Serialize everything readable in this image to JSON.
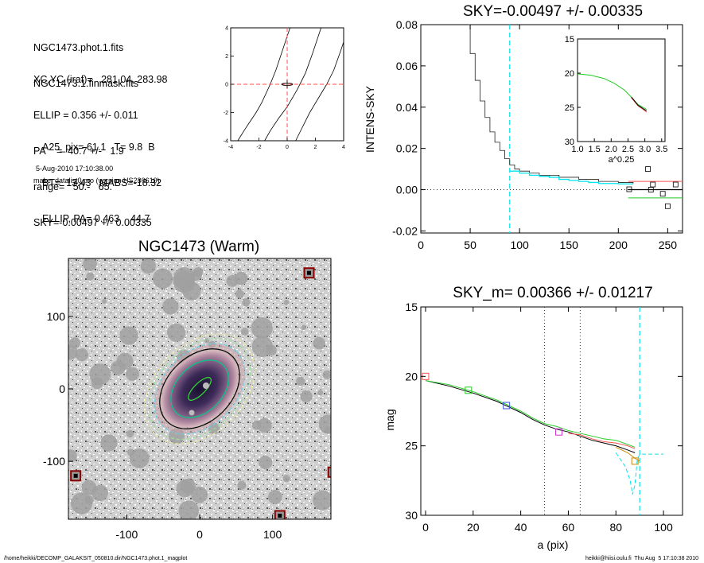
{
  "info": {
    "file_lines": [
      "NGC1473.phot.1.fits",
      "NGC1473.1.finmask.fits"
    ],
    "param_lines": [
      "XC,YC (iraf)=   281.04, 283.98",
      "ELLIP = 0.356 +/- 0.011",
      "PA    =  40.7 +/-   1.9",
      "range=   50.-   65.",
      "SKY=-0.00497 +/- 0.00335"
    ],
    "result_lines": [
      "A25_pix= 61.1   T= 9.8  B",
      "BT=  13.43   MABS=-18.32",
      "ELLIP, PA= 0.463    44.7"
    ],
    "date": "5-Aug-2010 17:10:38.00",
    "program": "make_datalist0.pro (version HS230610)"
  },
  "footer": {
    "left": "/home/heikki/DECOMP_GALAKSIT_050810.dir/NGC1473.phot.1_magplot",
    "right": "heikki@hiisi.oulu.fi  Thu Aug  5 17:10:38 2010"
  },
  "colors": {
    "sky_dash": "#00e5ee",
    "red": "#ff5050",
    "green": "#22cc22",
    "blue": "#3355dd",
    "magenta": "#cc33cc",
    "orange": "#cc8800"
  },
  "chart_data": [
    {
      "id": "contour",
      "type": "line",
      "title": "",
      "xlabel": "",
      "ylabel": "",
      "xlim": [
        -4,
        4
      ],
      "ylim": [
        -4,
        4
      ],
      "xticks": [
        "-4",
        "-2",
        "0",
        "2",
        "4"
      ],
      "yticks": [
        "-4",
        "-2",
        "0",
        "2",
        "4"
      ],
      "series": [
        {
          "x": [
            -3.5,
            -3.0,
            -2.6,
            -2.2,
            -1.8,
            -1.2,
            -0.8,
            0.2
          ],
          "y": [
            -4.0,
            -3.2,
            -2.6,
            -2.0,
            -1.3,
            0.0,
            1.0,
            4.0
          ]
        },
        {
          "x": [
            -1.6,
            -1.2,
            -0.6,
            0.0,
            0.7,
            1.3,
            1.8,
            2.4
          ],
          "y": [
            -4.0,
            -3.3,
            -2.4,
            -1.6,
            -0.4,
            0.8,
            2.2,
            4.0
          ]
        },
        {
          "x": [
            0.6,
            1.1,
            1.6,
            2.2,
            2.8,
            3.3,
            3.8,
            4.0
          ],
          "y": [
            -4.0,
            -3.0,
            -2.0,
            -1.0,
            0.0,
            1.0,
            2.4,
            3.0
          ]
        }
      ],
      "crosshair": {
        "x": 0,
        "y": 0
      }
    },
    {
      "id": "sky_intensity",
      "type": "line",
      "title": "SKY=-0.00497 +/- 0.00335",
      "xlabel": "",
      "ylabel": "INTENS-SKY",
      "xlim": [
        0,
        265
      ],
      "ylim": [
        -0.021,
        0.08
      ],
      "xticks": [
        0,
        50,
        100,
        150,
        200,
        250
      ],
      "yticks": [
        "-0.02",
        "0.00",
        "0.02",
        "0.04",
        "0.06",
        "0.08"
      ],
      "profile": {
        "x": [
          48,
          50,
          55,
          60,
          65,
          70,
          75,
          80,
          85,
          90,
          95,
          100,
          110,
          120,
          140,
          160,
          180,
          200,
          215
        ],
        "y": [
          0.08,
          0.066,
          0.053,
          0.043,
          0.035,
          0.028,
          0.023,
          0.019,
          0.015,
          0.012,
          0.01,
          0.009,
          0.008,
          0.007,
          0.006,
          0.005,
          0.004,
          0.0035,
          0.003
        ]
      },
      "sky_steps": {
        "x": [
          90,
          100,
          110,
          120,
          130,
          140,
          150,
          160,
          170,
          180,
          190,
          200,
          215
        ],
        "y": [
          0.009,
          0.008,
          0.007,
          0.0065,
          0.006,
          0.005,
          0.0045,
          0.004,
          0.0035,
          0.003,
          0.003,
          0.0028,
          0.0028
        ]
      },
      "sky_window": {
        "x1": 210,
        "x2": 260
      },
      "red_level": 0.004,
      "black_level": 0.0,
      "green_level": -0.004,
      "squares": [
        {
          "x": 230,
          "y": 0.01
        },
        {
          "x": 211,
          "y": 0.0002
        },
        {
          "x": 235,
          "y": 0.0025
        },
        {
          "x": 245,
          "y": -0.002
        },
        {
          "x": 250,
          "y": -0.008
        },
        {
          "x": 258,
          "y": 0.0025
        },
        {
          "x": 233,
          "y": 0.0
        }
      ],
      "vline": 90,
      "zero": 0.0
    },
    {
      "id": "inset",
      "type": "line",
      "title": "",
      "xlabel": "a^0.25",
      "ylabel": "",
      "xlim": [
        1.0,
        3.6
      ],
      "ylim": [
        30,
        15
      ],
      "xticks": [
        "1.0",
        "1.5",
        "2.0",
        "2.5",
        "3.0",
        "3.5"
      ],
      "yticks": [
        "15",
        "20",
        "25",
        "30"
      ],
      "series": [
        {
          "name": "",
          "color": "#22cc22",
          "x": [
            1.0,
            1.4,
            1.8,
            2.1,
            2.4,
            2.6,
            2.8,
            2.95,
            3.05
          ],
          "y": [
            20.1,
            20.3,
            20.8,
            21.5,
            22.5,
            23.5,
            24.6,
            25.0,
            25.3
          ]
        },
        {
          "name": "",
          "color": "#ff5050",
          "x": [
            2.6,
            2.8,
            2.95,
            3.05
          ],
          "y": [
            23.6,
            24.8,
            25.3,
            25.7
          ]
        },
        {
          "name": "",
          "color": "#000000",
          "x": [
            2.6,
            2.8,
            2.95,
            3.05
          ],
          "y": [
            23.5,
            24.7,
            25.2,
            25.5
          ]
        }
      ]
    },
    {
      "id": "galaxy_image",
      "type": "scatter",
      "title": "NGC1473 (Warm)",
      "xlabel": "",
      "ylabel": "",
      "xlim": [
        -180,
        180
      ],
      "ylim": [
        -180,
        180
      ],
      "xticks": [
        -100,
        0,
        100
      ],
      "yticks": [
        -100,
        0,
        100
      ],
      "ellipses": [
        {
          "rx": 80,
          "ry": 56,
          "color": "#e8e8a0",
          "dash": true
        },
        {
          "rx": 74,
          "ry": 51,
          "color": "#9be09b",
          "dash": true
        },
        {
          "rx": 66,
          "ry": 46,
          "color": "#66d0e8",
          "dash": true
        },
        {
          "rx": 58,
          "ry": 41,
          "color": "#000000",
          "dash": false
        },
        {
          "rx": 42,
          "ry": 29,
          "color": "#00cc88",
          "dash": false
        },
        {
          "rx": 19,
          "ry": 7,
          "color": "#33dd33",
          "dash": false
        }
      ],
      "ellipse_angle": 45,
      "markers": [
        {
          "x": 150,
          "y": 160
        },
        {
          "x": -170,
          "y": -120
        },
        {
          "x": 110,
          "y": -175
        },
        {
          "x": 183,
          "y": -115
        }
      ]
    },
    {
      "id": "mag_profile",
      "type": "line",
      "title": "SKY_m=  0.00366 +/- 0.01217",
      "xlabel": "a (pix)",
      "ylabel": "mag",
      "xlim": [
        -2,
        108
      ],
      "ylim": [
        30,
        15
      ],
      "xticks": [
        0,
        20,
        40,
        60,
        80,
        100
      ],
      "yticks": [
        15,
        20,
        25,
        30
      ],
      "vlines_dotted": [
        50,
        65
      ],
      "vline_dashed": 90,
      "series": [
        {
          "name": "",
          "color": "#000000",
          "x": [
            0,
            10,
            20,
            30,
            40,
            45,
            50,
            55,
            60,
            65,
            70,
            75,
            80,
            85,
            88
          ],
          "y": [
            20.3,
            20.7,
            21.2,
            21.8,
            22.6,
            23.1,
            23.5,
            23.8,
            24.0,
            24.3,
            24.6,
            24.8,
            25.0,
            25.3,
            25.5
          ]
        },
        {
          "name": "",
          "color": "#ff5050",
          "x": [
            60,
            65,
            70,
            75,
            80,
            85,
            88
          ],
          "y": [
            24.1,
            24.2,
            24.5,
            24.7,
            24.8,
            25.0,
            25.2
          ]
        },
        {
          "name": "",
          "color": "#22cc22",
          "x": [
            0,
            10,
            20,
            30,
            40,
            45,
            50,
            55,
            60,
            65,
            70,
            75,
            80,
            85,
            88
          ],
          "y": [
            20.3,
            20.6,
            21.1,
            21.7,
            22.5,
            23.0,
            23.4,
            23.6,
            23.9,
            24.1,
            24.3,
            24.5,
            24.6,
            24.9,
            25.1
          ]
        },
        {
          "name": "",
          "color": "#cc8800",
          "x": [
            80,
            85,
            88,
            90
          ],
          "y": [
            25.1,
            25.5,
            25.9,
            26.1
          ]
        },
        {
          "name": "",
          "color": "#00e5ee",
          "x": [
            80,
            84,
            86,
            87,
            88,
            89,
            90,
            92,
            95,
            100
          ],
          "y": [
            25.5,
            26.5,
            27.5,
            28.5,
            27.8,
            26.0,
            25.6,
            25.6,
            25.6,
            25.6
          ]
        }
      ],
      "squares": [
        {
          "x": 0,
          "y": 20.0,
          "color": "#ff5050"
        },
        {
          "x": 18,
          "y": 21.0,
          "color": "#22cc22"
        },
        {
          "x": 34,
          "y": 22.1,
          "color": "#3355dd"
        },
        {
          "x": 56,
          "y": 24.0,
          "color": "#cc33cc"
        },
        {
          "x": 88,
          "y": 26.1,
          "color": "#cc8800"
        }
      ]
    }
  ]
}
